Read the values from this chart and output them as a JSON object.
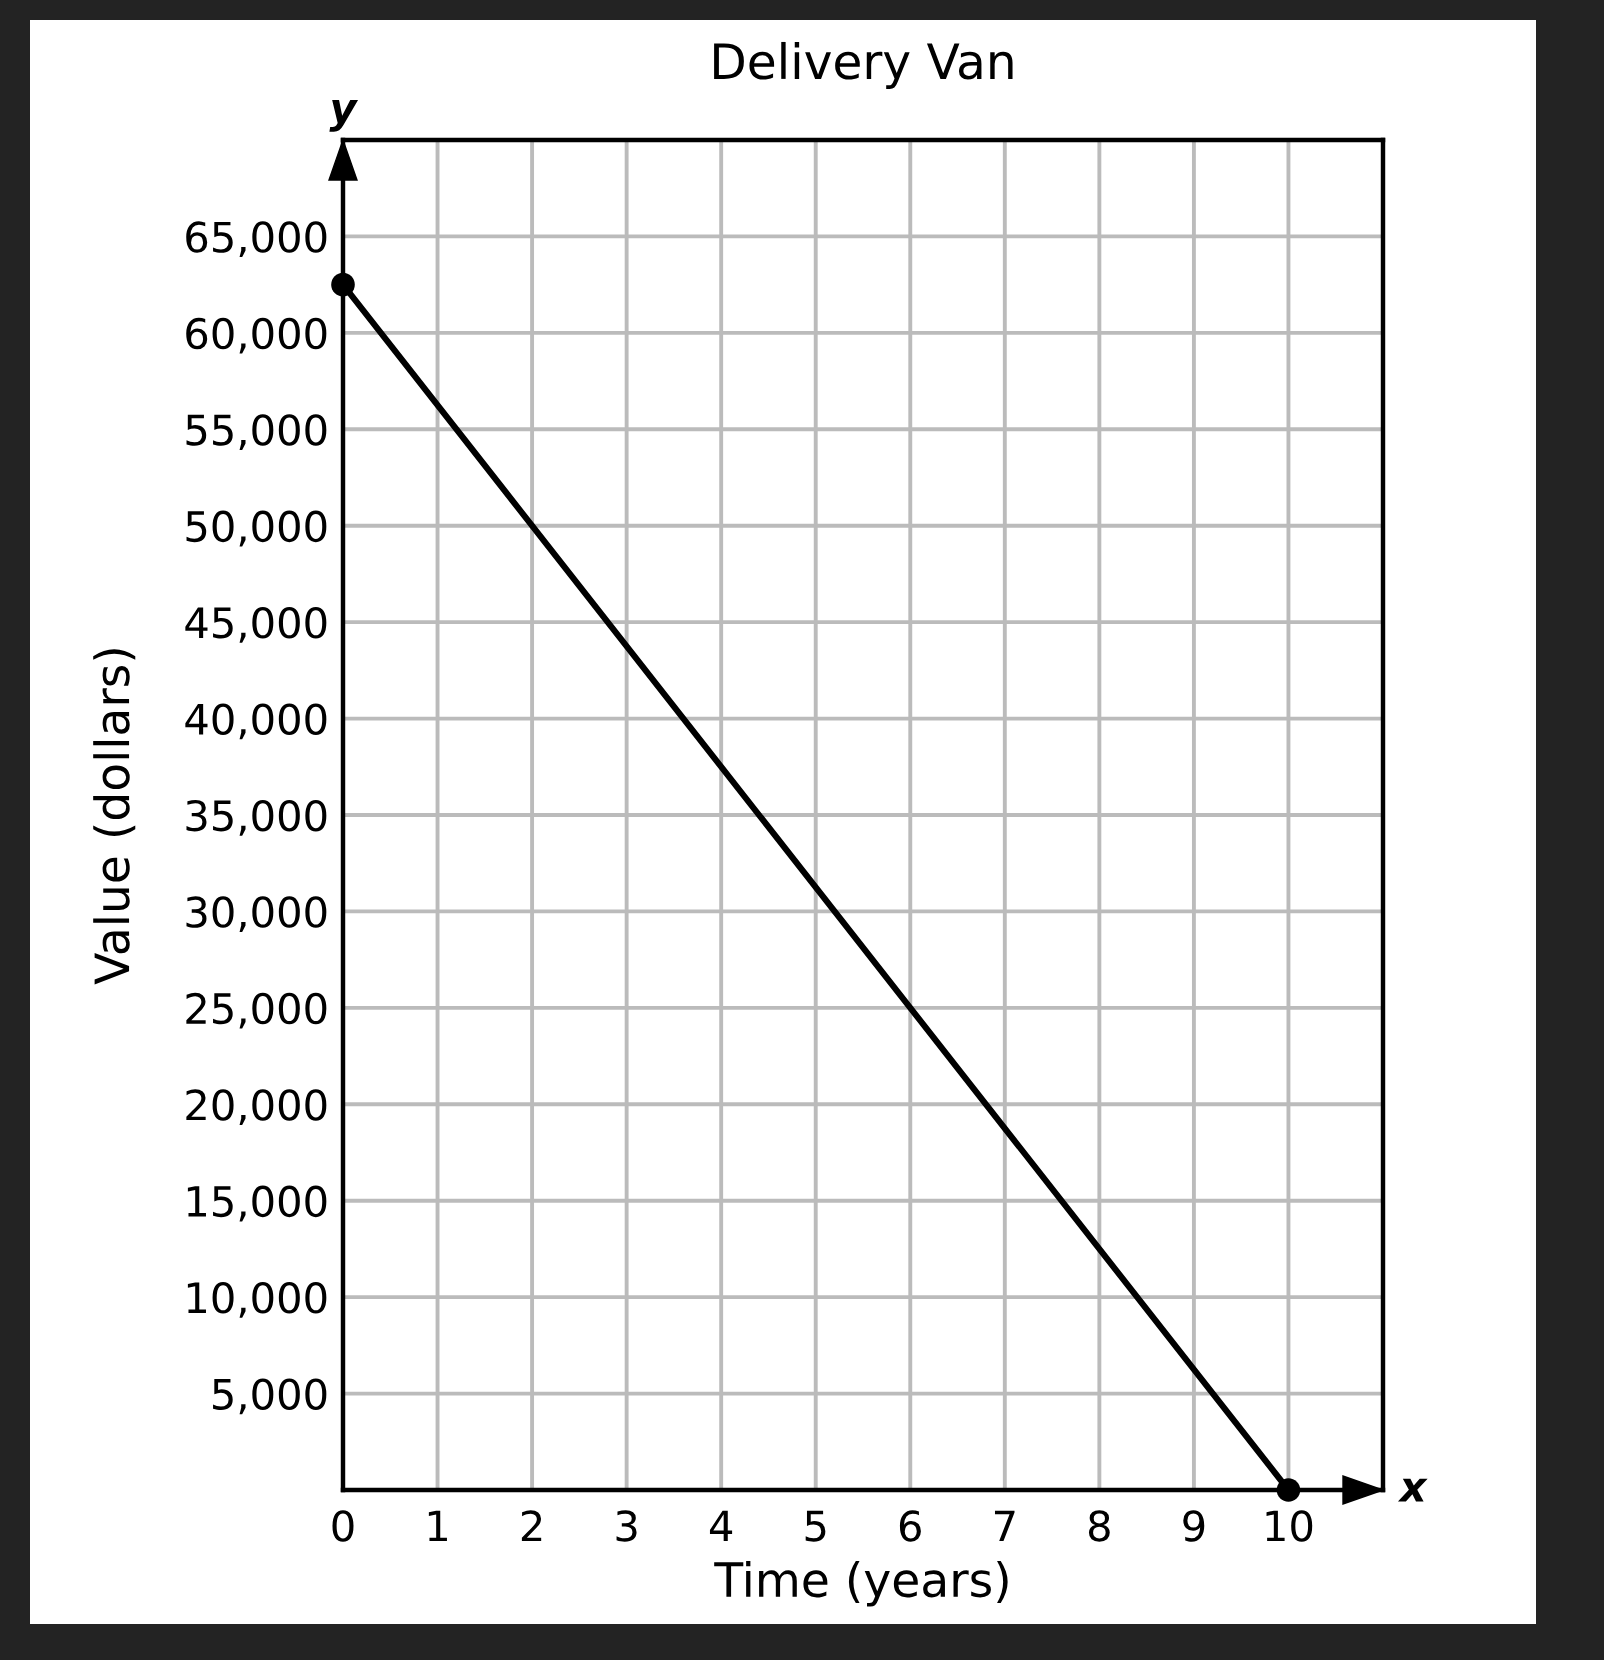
{
  "chart_data": {
    "type": "line",
    "title": "Delivery Van",
    "xlabel": "Time (years)",
    "ylabel": "Value (dollars)",
    "annotations": [
      "y",
      "x"
    ],
    "x": [
      0,
      10
    ],
    "series": [
      {
        "color": "#000000",
        "values": [
          62500,
          0
        ]
      }
    ],
    "xlim": [
      0,
      11
    ],
    "ylim": [
      0,
      70000
    ],
    "xticks": [
      0,
      1,
      2,
      3,
      4,
      5,
      6,
      7,
      8,
      9,
      10
    ],
    "yticks": [
      {
        "value": 5000,
        "label": "5,000"
      },
      {
        "value": 10000,
        "label": "10,000"
      },
      {
        "value": 15000,
        "label": "15,000"
      },
      {
        "value": 20000,
        "label": "20,000"
      },
      {
        "value": 25000,
        "label": "25,000"
      },
      {
        "value": 30000,
        "label": "30,000"
      },
      {
        "value": 35000,
        "label": "35,000"
      },
      {
        "value": 40000,
        "label": "40,000"
      },
      {
        "value": 45000,
        "label": "45,000"
      },
      {
        "value": 50000,
        "label": "50,000"
      },
      {
        "value": 55000,
        "label": "55,000"
      },
      {
        "value": 60000,
        "label": "60,000"
      },
      {
        "value": 65000,
        "label": "65,000"
      }
    ],
    "grid": true,
    "marker": "circle",
    "line_style": "solid"
  }
}
